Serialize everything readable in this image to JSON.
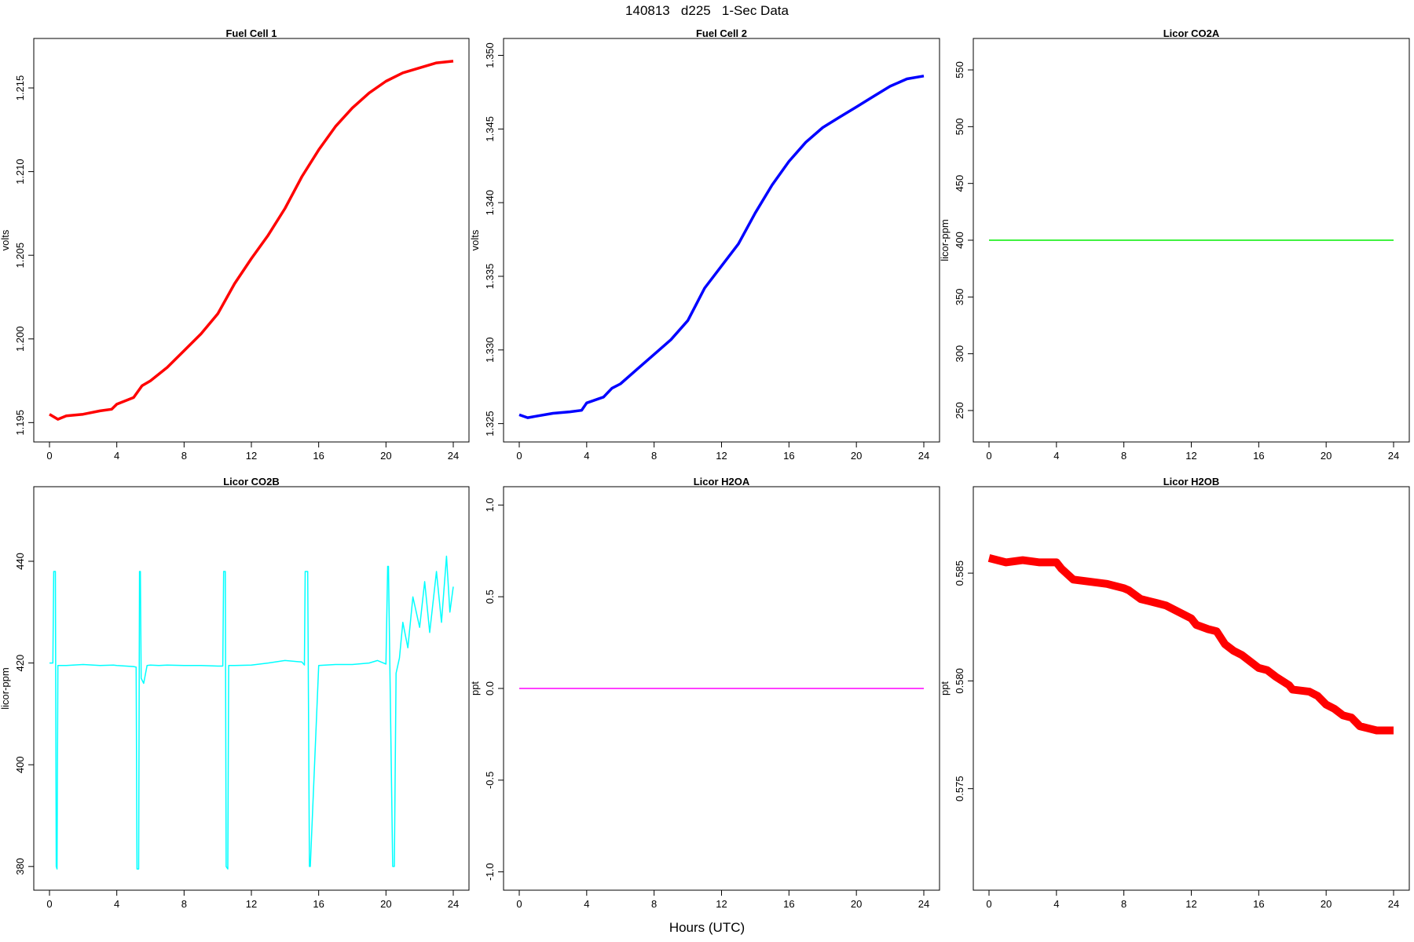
{
  "figure": {
    "title": "140813   d225   1-Sec Data",
    "xlabel": "Hours (UTC)"
  },
  "chart_data": [
    {
      "type": "line",
      "title": "Fuel Cell 1",
      "xlabel": "",
      "ylabel": "volts",
      "color": "#ff0000",
      "xlim": [
        0,
        24
      ],
      "ylim": [
        1.1945,
        1.2173
      ],
      "xticks": [
        "0",
        "4",
        "8",
        "12",
        "16",
        "20",
        "24"
      ],
      "yticks": [
        "1.195",
        "1.200",
        "1.205",
        "1.210",
        "1.215"
      ],
      "series": [
        {
          "x": [
            0,
            0.5,
            1,
            2,
            3,
            3.7,
            4,
            5,
            5.5,
            6,
            7,
            8,
            9,
            10,
            11,
            12,
            13,
            14,
            15,
            16,
            17,
            18,
            19,
            20,
            21,
            22,
            23,
            24
          ],
          "y": [
            1.1955,
            1.1952,
            1.1954,
            1.1955,
            1.1957,
            1.1958,
            1.1961,
            1.1965,
            1.1972,
            1.1975,
            1.1983,
            1.1993,
            1.2003,
            1.2015,
            1.2033,
            1.2048,
            1.2062,
            1.2078,
            1.2097,
            1.2113,
            1.2127,
            1.2138,
            1.2147,
            1.2154,
            1.2159,
            1.2162,
            1.2165,
            1.2166
          ]
        }
      ]
    },
    {
      "type": "line",
      "title": "Fuel Cell 2",
      "xlabel": "",
      "ylabel": "volts",
      "color": "#0000ff",
      "xlim": [
        0,
        24
      ],
      "ylim": [
        1.3245,
        1.3504
      ],
      "xticks": [
        "0",
        "4",
        "8",
        "12",
        "16",
        "20",
        "24"
      ],
      "yticks": [
        "1.325",
        "1.330",
        "1.335",
        "1.340",
        "1.345",
        "1.350"
      ],
      "series": [
        {
          "x": [
            0,
            0.5,
            1,
            2,
            3,
            3.7,
            4,
            5,
            5.5,
            6,
            7,
            8,
            9,
            10,
            11,
            12,
            13,
            14,
            15,
            16,
            17,
            18,
            19,
            20,
            21,
            22,
            23,
            24
          ],
          "y": [
            1.3256,
            1.3254,
            1.3255,
            1.3257,
            1.3258,
            1.3259,
            1.3264,
            1.3268,
            1.3274,
            1.3277,
            1.3287,
            1.3297,
            1.3307,
            1.332,
            1.3342,
            1.3357,
            1.3372,
            1.3393,
            1.3412,
            1.3428,
            1.3441,
            1.3451,
            1.3458,
            1.3465,
            1.3472,
            1.3479,
            1.3484,
            1.3486
          ]
        }
      ]
    },
    {
      "type": "line",
      "title": "Licor CO2A",
      "xlabel": "",
      "ylabel": "licor-ppm",
      "color": "#00ee00",
      "xlim": [
        0,
        24
      ],
      "ylim": [
        232,
        568
      ],
      "xticks": [
        "0",
        "4",
        "8",
        "12",
        "16",
        "20",
        "24"
      ],
      "yticks": [
        "250",
        "300",
        "350",
        "400",
        "450",
        "500",
        "550"
      ],
      "series": [
        {
          "x": [
            0,
            24
          ],
          "y": [
            400,
            400
          ]
        }
      ]
    },
    {
      "type": "line",
      "title": "Licor CO2B",
      "xlabel": "",
      "ylabel": "licor-ppm",
      "color": "#00ffff",
      "xlim": [
        0,
        24
      ],
      "ylim": [
        377.5,
        452.5
      ],
      "xticks": [
        "0",
        "4",
        "8",
        "12",
        "16",
        "20",
        "24"
      ],
      "yticks": [
        "380",
        "400",
        "420",
        "440"
      ],
      "series": [
        {
          "x": [
            0,
            0.2,
            0.25,
            0.35,
            0.4,
            0.45,
            0.5,
            1,
            2,
            3,
            3.8,
            4,
            5,
            5.15,
            5.2,
            5.3,
            5.35,
            5.4,
            5.45,
            5.6,
            5.8,
            6,
            6.5,
            7,
            8,
            9,
            10,
            10.3,
            10.35,
            10.45,
            10.5,
            10.6,
            10.65,
            11,
            12,
            13,
            14,
            15,
            15.15,
            15.2,
            15.35,
            15.45,
            15.5,
            16,
            17,
            18,
            19,
            19.5,
            20,
            20.1,
            20.15,
            20.4,
            20.5,
            20.6,
            20.8,
            21,
            21.3,
            21.6,
            22,
            22.3,
            22.6,
            23,
            23.3,
            23.6,
            23.8,
            24
          ],
          "y": [
            420,
            420,
            438,
            438,
            380,
            379.5,
            419.5,
            419.5,
            419.7,
            419.5,
            419.6,
            419.5,
            419.3,
            419.2,
            379.5,
            379.5,
            438,
            438,
            417,
            416,
            419.5,
            419.6,
            419.5,
            419.6,
            419.5,
            419.5,
            419.4,
            419.4,
            438,
            438,
            380,
            379.5,
            419.5,
            419.5,
            419.6,
            420,
            420.5,
            420.2,
            419.6,
            438,
            438,
            380,
            380,
            419.5,
            419.7,
            419.7,
            420,
            420.5,
            419.8,
            439,
            439,
            380,
            380,
            418,
            421,
            428,
            423,
            433,
            427,
            436,
            426,
            438,
            428,
            441,
            430,
            435
          ]
        }
      ]
    },
    {
      "type": "line",
      "title": "Licor H2OA",
      "xlabel": "",
      "ylabel": "ppt",
      "color": "#ff00ff",
      "xlim": [
        0,
        24
      ],
      "ylim": [
        -1.04,
        1.04
      ],
      "xticks": [
        "0",
        "4",
        "8",
        "12",
        "16",
        "20",
        "24"
      ],
      "yticks": [
        "-1.0",
        "-0.5",
        "0.0",
        "0.5",
        "1.0"
      ],
      "series": [
        {
          "x": [
            0,
            24
          ],
          "y": [
            0,
            0
          ]
        }
      ]
    },
    {
      "type": "line",
      "title": "Licor H2OB",
      "xlabel": "",
      "ylabel": "ppt",
      "color": "#ff0000",
      "xlim": [
        0,
        24
      ],
      "ylim": [
        0.5708,
        0.5885
      ],
      "xticks": [
        "0",
        "4",
        "8",
        "12",
        "16",
        "20",
        "24"
      ],
      "yticks": [
        "0.575",
        "0.580",
        "0.585"
      ],
      "series": [
        {
          "x": [
            0,
            1,
            2,
            3,
            4,
            4.3,
            5,
            6,
            7,
            7.5,
            8,
            8.3,
            9,
            9.5,
            10,
            10.5,
            11,
            12,
            12.3,
            13,
            13.5,
            14,
            14.5,
            15,
            16,
            16.5,
            17,
            17.8,
            18,
            19,
            19.5,
            20,
            20.5,
            21,
            21.5,
            22,
            22.5,
            23,
            24
          ],
          "y": [
            0.5857,
            0.5855,
            0.5856,
            0.5855,
            0.5855,
            0.5852,
            0.5847,
            0.5846,
            0.5845,
            0.5844,
            0.5843,
            0.5842,
            0.5838,
            0.5837,
            0.5836,
            0.5835,
            0.5833,
            0.5829,
            0.5826,
            0.5824,
            0.5823,
            0.5817,
            0.5814,
            0.5812,
            0.5806,
            0.5805,
            0.5802,
            0.5798,
            0.5796,
            0.5795,
            0.5793,
            0.5789,
            0.5787,
            0.5784,
            0.5783,
            0.5779,
            0.5778,
            0.5777,
            0.5777
          ]
        }
      ]
    }
  ]
}
